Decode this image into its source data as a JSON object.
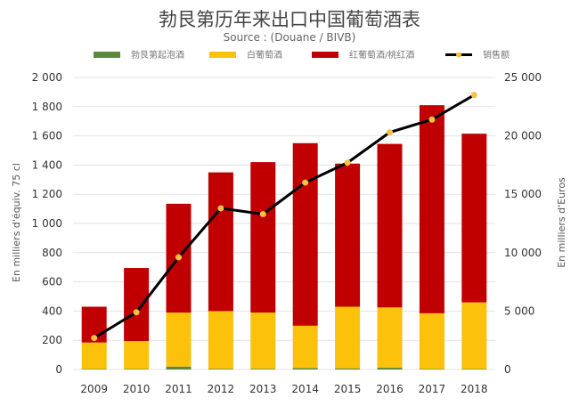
{
  "chart_data": {
    "type": "bar",
    "stacked": true,
    "title": "勃艮第历年来出口中国葡萄酒表",
    "subtitle": "Source : (Douane / BIVB)",
    "categories": [
      "2009",
      "2010",
      "2011",
      "2012",
      "2013",
      "2014",
      "2015",
      "2016",
      "2017",
      "2018"
    ],
    "ylabel_left": "En milliers d'équiv. 75 cl",
    "ylabel_right": "En milliers d'Euros",
    "ylim_left": [
      0,
      2000
    ],
    "ylim_right": [
      0,
      25000
    ],
    "yticks_left": [
      "0",
      "200",
      "400",
      "600",
      "800",
      "1 000",
      "1 200",
      "1 400",
      "1 600",
      "1 800",
      "2 000"
    ],
    "yticks_right": [
      "0",
      "5 000",
      "10 000",
      "15 000",
      "20 000",
      "25 000"
    ],
    "grid": true,
    "legend_position": "top",
    "series": [
      {
        "name": "勃艮第起泡酒",
        "axis": "left",
        "kind": "bar",
        "color": "#5a8a3a",
        "values": [
          3,
          3,
          20,
          5,
          5,
          10,
          8,
          12,
          3,
          3
        ]
      },
      {
        "name": "白葡萄酒",
        "axis": "left",
        "kind": "bar",
        "color": "#fcc10a",
        "values": [
          182,
          192,
          370,
          395,
          385,
          290,
          422,
          413,
          382,
          457
        ]
      },
      {
        "name": "红葡萄酒/桃红酒",
        "axis": "left",
        "kind": "bar",
        "color": "#c00000",
        "values": [
          245,
          500,
          745,
          950,
          1030,
          1250,
          980,
          1120,
          1425,
          1155
        ]
      },
      {
        "name": "销售额",
        "axis": "right",
        "kind": "line",
        "color": "#000000",
        "marker_color": "#f5c242",
        "values": [
          2700,
          4900,
          9600,
          13800,
          13300,
          16000,
          17700,
          20300,
          21400,
          23500
        ]
      }
    ]
  }
}
